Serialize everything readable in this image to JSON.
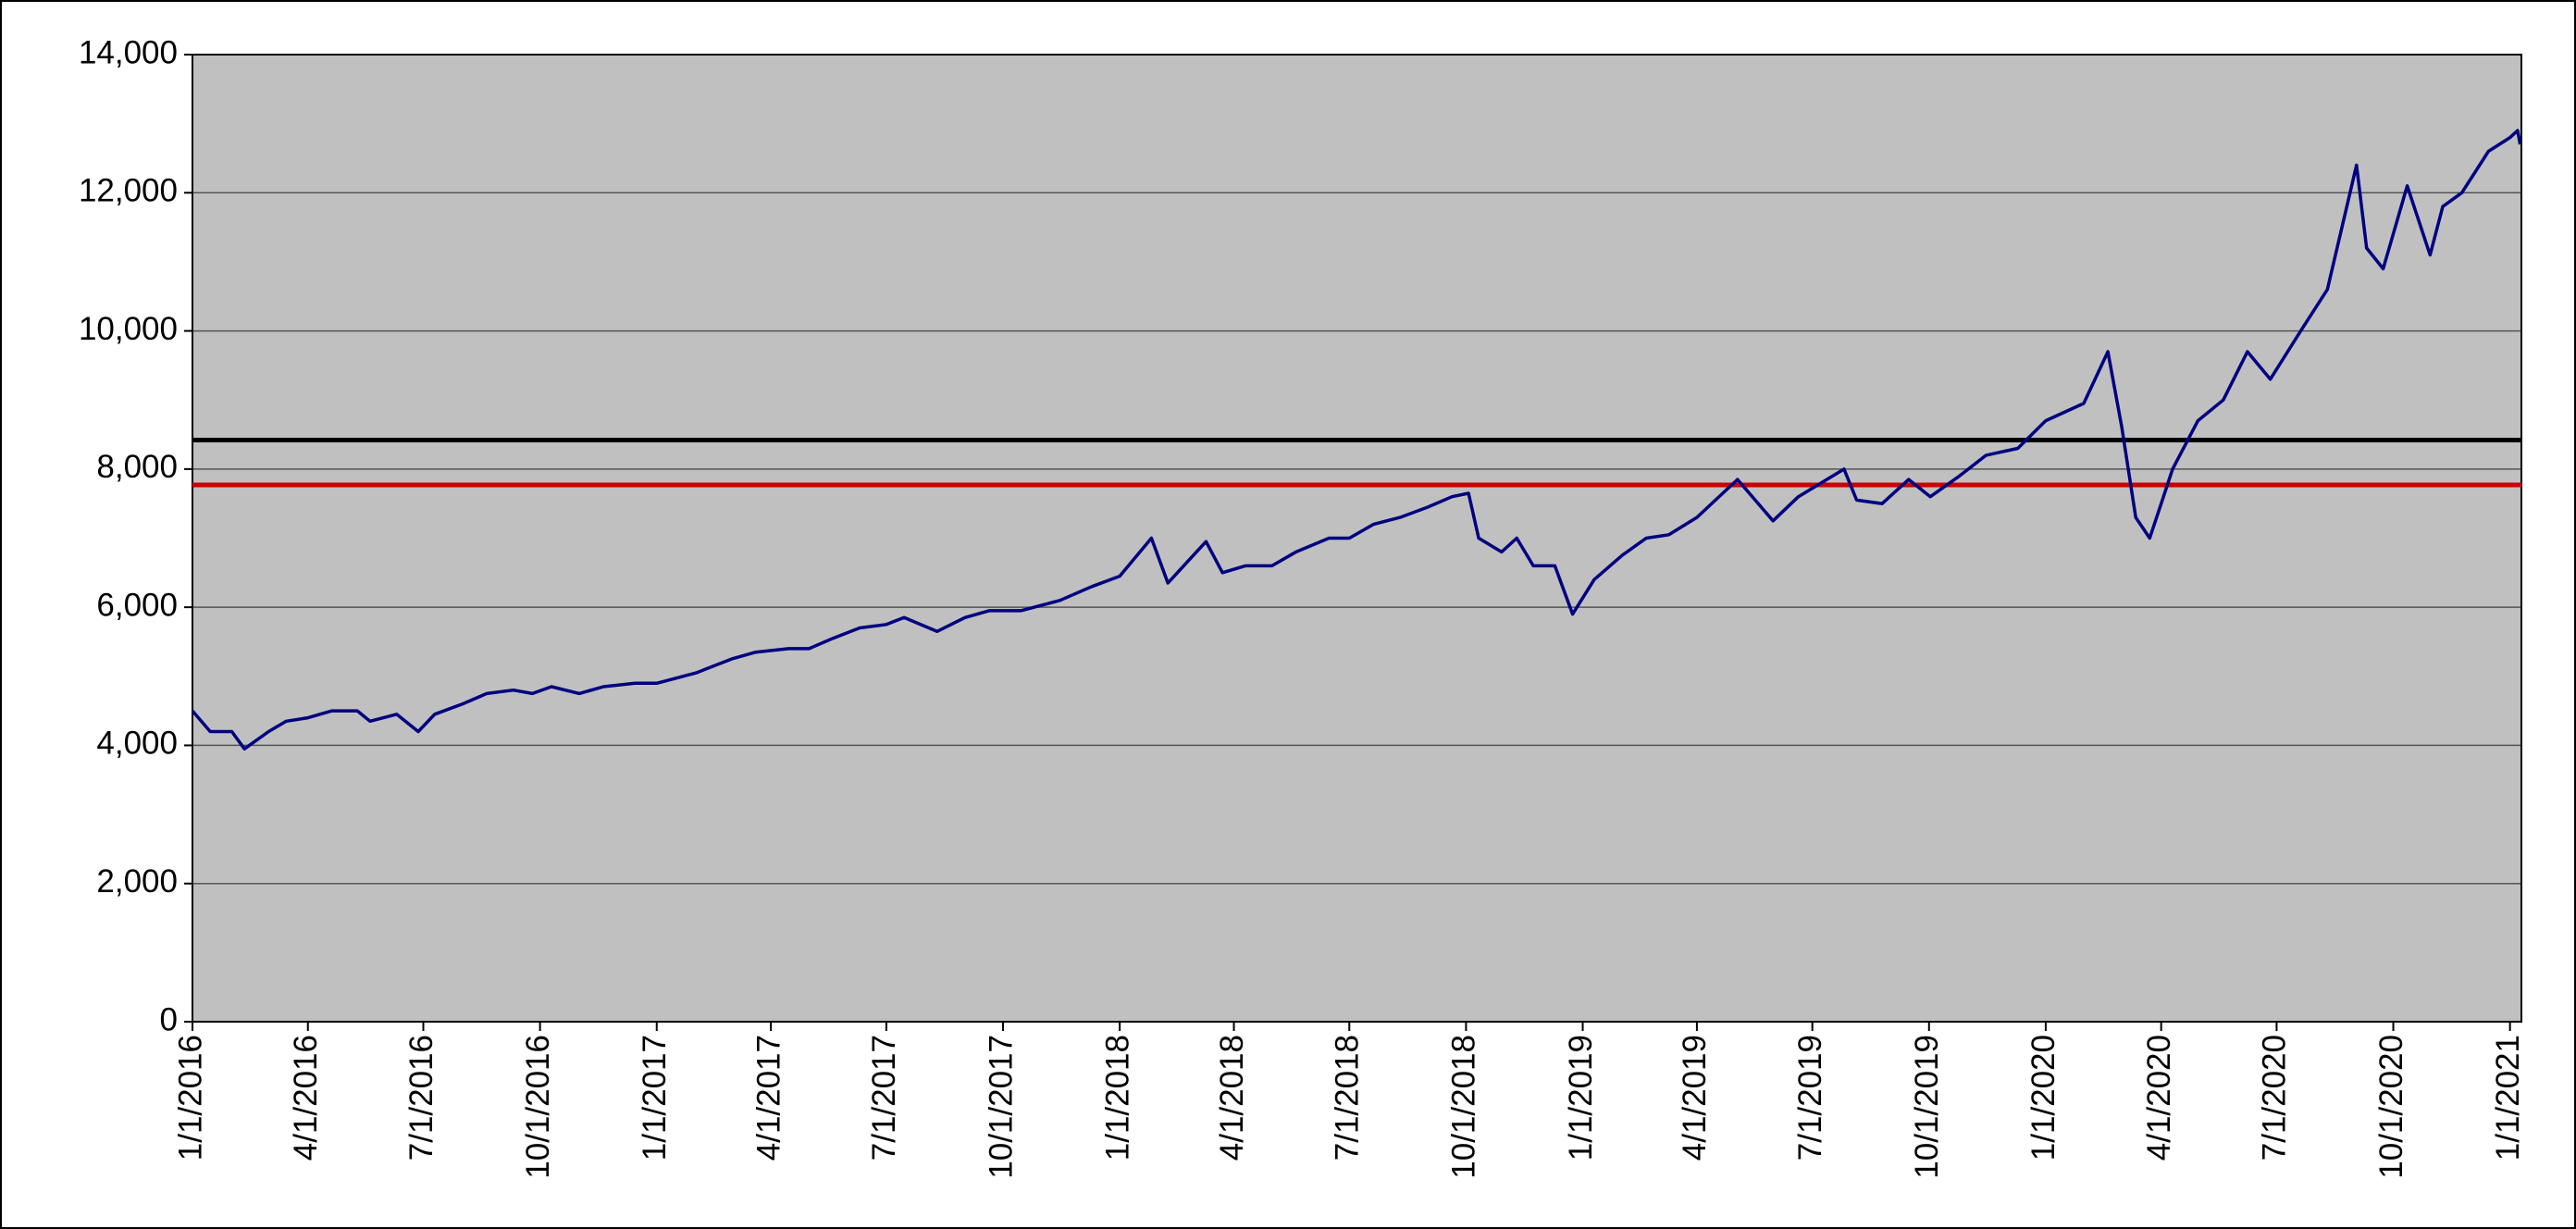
{
  "chart_data": {
    "type": "line",
    "x": [
      "2016-01-01",
      "2016-01-15",
      "2016-02-01",
      "2016-02-11",
      "2016-03-01",
      "2016-03-15",
      "2016-04-01",
      "2016-04-20",
      "2016-05-10",
      "2016-05-20",
      "2016-06-10",
      "2016-06-27",
      "2016-07-10",
      "2016-08-01",
      "2016-08-20",
      "2016-09-10",
      "2016-09-25",
      "2016-10-10",
      "2016-11-01",
      "2016-11-20",
      "2016-12-15",
      "2017-01-01",
      "2017-02-01",
      "2017-03-01",
      "2017-03-20",
      "2017-04-15",
      "2017-05-01",
      "2017-05-20",
      "2017-06-10",
      "2017-07-01",
      "2017-07-15",
      "2017-08-10",
      "2017-09-01",
      "2017-09-20",
      "2017-10-15",
      "2017-11-15",
      "2017-12-10",
      "2018-01-01",
      "2018-01-26",
      "2018-02-08",
      "2018-03-10",
      "2018-03-23",
      "2018-04-10",
      "2018-05-01",
      "2018-05-20",
      "2018-06-15",
      "2018-07-01",
      "2018-07-20",
      "2018-08-10",
      "2018-09-01",
      "2018-09-20",
      "2018-10-03",
      "2018-10-11",
      "2018-10-29",
      "2018-11-10",
      "2018-11-23",
      "2018-12-10",
      "2018-12-24",
      "2019-01-10",
      "2019-02-01",
      "2019-02-20",
      "2019-03-10",
      "2019-04-01",
      "2019-05-03",
      "2019-05-31",
      "2019-06-20",
      "2019-07-26",
      "2019-08-05",
      "2019-08-25",
      "2019-09-15",
      "2019-10-02",
      "2019-10-25",
      "2019-11-15",
      "2019-12-10",
      "2020-01-01",
      "2020-01-31",
      "2020-02-19",
      "2020-03-01",
      "2020-03-12",
      "2020-03-23",
      "2020-04-01",
      "2020-04-10",
      "2020-04-30",
      "2020-05-20",
      "2020-06-08",
      "2020-06-26",
      "2020-07-20",
      "2020-08-10",
      "2020-09-02",
      "2020-09-10",
      "2020-09-23",
      "2020-10-12",
      "2020-10-30",
      "2020-11-09",
      "2020-11-24",
      "2020-12-15",
      "2021-01-01",
      "2021-01-07",
      "2021-01-09"
    ],
    "series": [
      {
        "color": "#000080",
        "values": [
          4500,
          4200,
          4200,
          3950,
          4200,
          4350,
          4400,
          4500,
          4500,
          4350,
          4450,
          4200,
          4450,
          4600,
          4750,
          4800,
          4750,
          4850,
          4750,
          4850,
          4900,
          4900,
          5050,
          5250,
          5350,
          5400,
          5400,
          5550,
          5700,
          5750,
          5850,
          5650,
          5850,
          5950,
          5950,
          6100,
          6300,
          6450,
          7000,
          6350,
          6950,
          6500,
          6600,
          6600,
          6800,
          7000,
          7000,
          7200,
          7300,
          7450,
          7600,
          7650,
          7000,
          6800,
          7000,
          6600,
          6600,
          5900,
          6400,
          6750,
          7000,
          7050,
          7300,
          7850,
          7250,
          7600,
          8000,
          7550,
          7500,
          7850,
          7600,
          7900,
          8200,
          8300,
          8700,
          8950,
          9700,
          8600,
          7300,
          7000,
          7500,
          8000,
          8700,
          9000,
          9700,
          9300,
          10000,
          10600,
          12400,
          11200,
          10900,
          12100,
          11100,
          11800,
          12000,
          12600,
          12800,
          12900,
          12700
        ]
      }
    ],
    "reference_lines": [
      {
        "value": 8420,
        "color": "#000000"
      },
      {
        "value": 7770,
        "color": "#cc0000"
      }
    ],
    "xlim": [
      "2016-01-01",
      "2021-01-10"
    ],
    "xticks": [
      {
        "value": "2016-01-01",
        "label": "1/1/2016"
      },
      {
        "value": "2016-04-01",
        "label": "4/1/2016"
      },
      {
        "value": "2016-07-01",
        "label": "7/1/2016"
      },
      {
        "value": "2016-10-01",
        "label": "10/1/2016"
      },
      {
        "value": "2017-01-01",
        "label": "1/1/2017"
      },
      {
        "value": "2017-04-01",
        "label": "4/1/2017"
      },
      {
        "value": "2017-07-01",
        "label": "7/1/2017"
      },
      {
        "value": "2017-10-01",
        "label": "10/1/2017"
      },
      {
        "value": "2018-01-01",
        "label": "1/1/2018"
      },
      {
        "value": "2018-04-01",
        "label": "4/1/2018"
      },
      {
        "value": "2018-07-01",
        "label": "7/1/2018"
      },
      {
        "value": "2018-10-01",
        "label": "10/1/2018"
      },
      {
        "value": "2019-01-01",
        "label": "1/1/2019"
      },
      {
        "value": "2019-04-01",
        "label": "4/1/2019"
      },
      {
        "value": "2019-07-01",
        "label": "7/1/2019"
      },
      {
        "value": "2019-10-01",
        "label": "10/1/2019"
      },
      {
        "value": "2020-01-01",
        "label": "1/1/2020"
      },
      {
        "value": "2020-04-01",
        "label": "4/1/2020"
      },
      {
        "value": "2020-07-01",
        "label": "7/1/2020"
      },
      {
        "value": "2020-10-01",
        "label": "10/1/2020"
      },
      {
        "value": "2021-01-01",
        "label": "1/1/2021"
      }
    ],
    "ylim": [
      0,
      14000
    ],
    "yticks": [
      0,
      {
        "value": 2000,
        "label": "2,000"
      },
      {
        "value": 4000,
        "label": "4,000"
      },
      {
        "value": 6000,
        "label": "6,000"
      },
      {
        "value": 8000,
        "label": "8,000"
      },
      {
        "value": 10000,
        "label": "10,000"
      },
      {
        "value": 12000,
        "label": "12,000"
      },
      {
        "value": 14000,
        "label": "14,000"
      }
    ],
    "grid": true,
    "background": "#c0c0c0"
  }
}
